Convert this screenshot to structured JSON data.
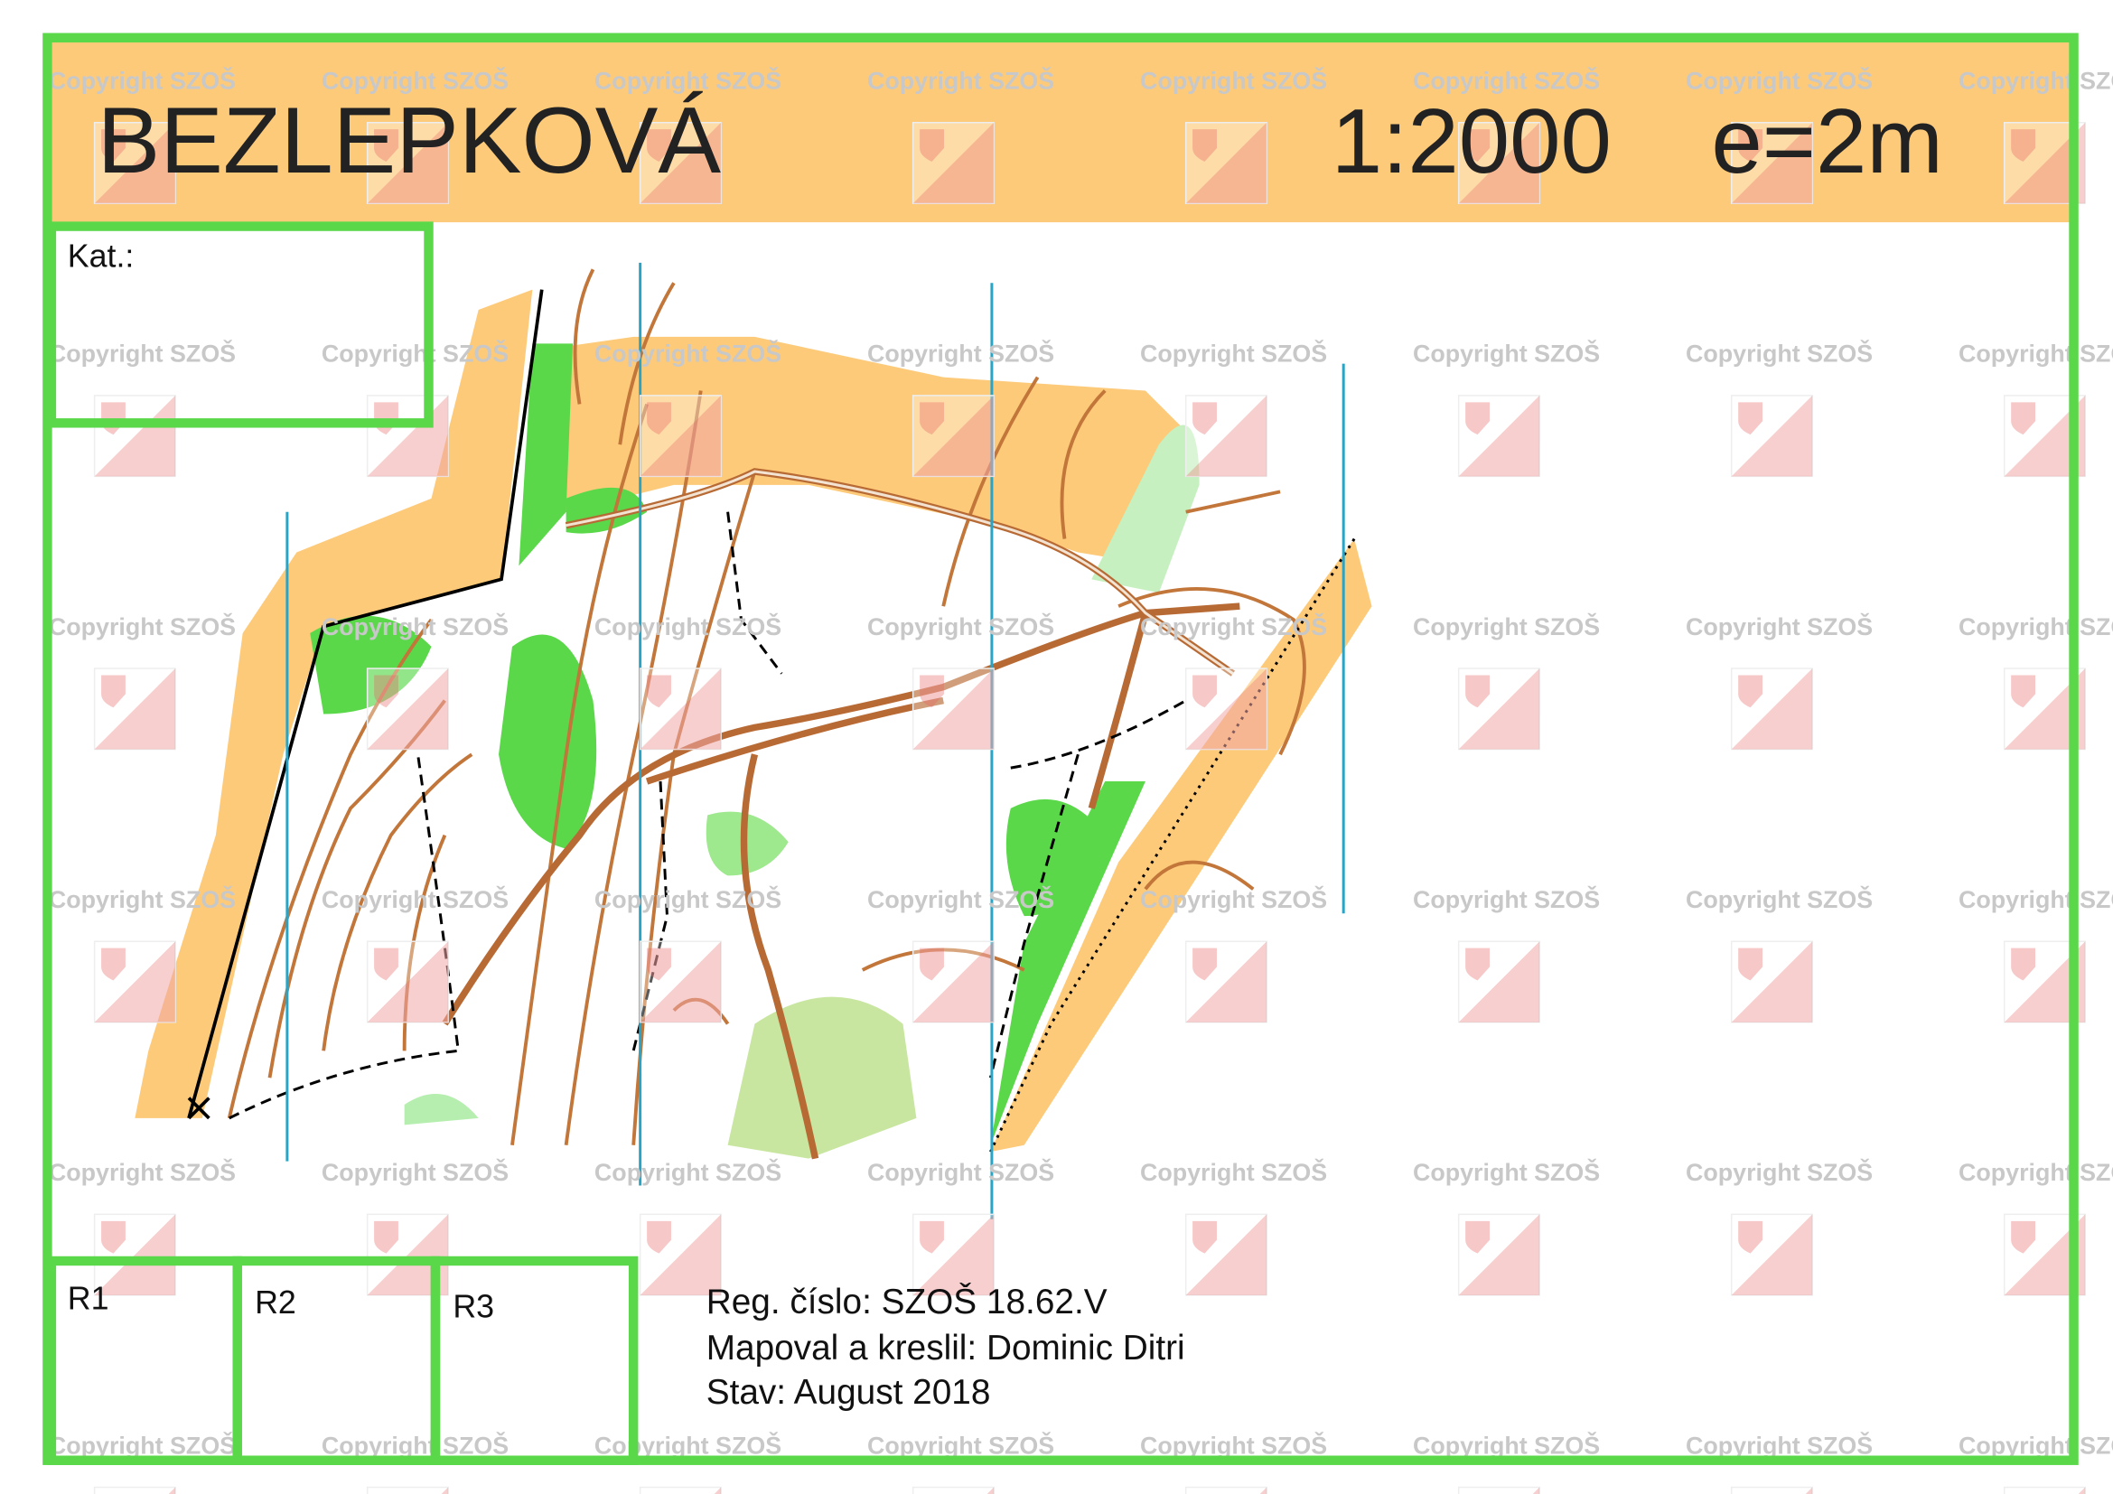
{
  "header": {
    "title": "BEZLEPKOVÁ",
    "scale": "1:2000",
    "contour_interval": "e=2m"
  },
  "boxes": {
    "category": "Kat.:",
    "r1": "R1",
    "r2": "R2",
    "r3": "R3"
  },
  "info": [
    "Reg. číslo: SZOŠ 18.62.V",
    "Mapoval a kreslil: Dominic Ditri",
    "Stav: August 2018"
  ],
  "watermark": "Copyright SZOŠ"
}
